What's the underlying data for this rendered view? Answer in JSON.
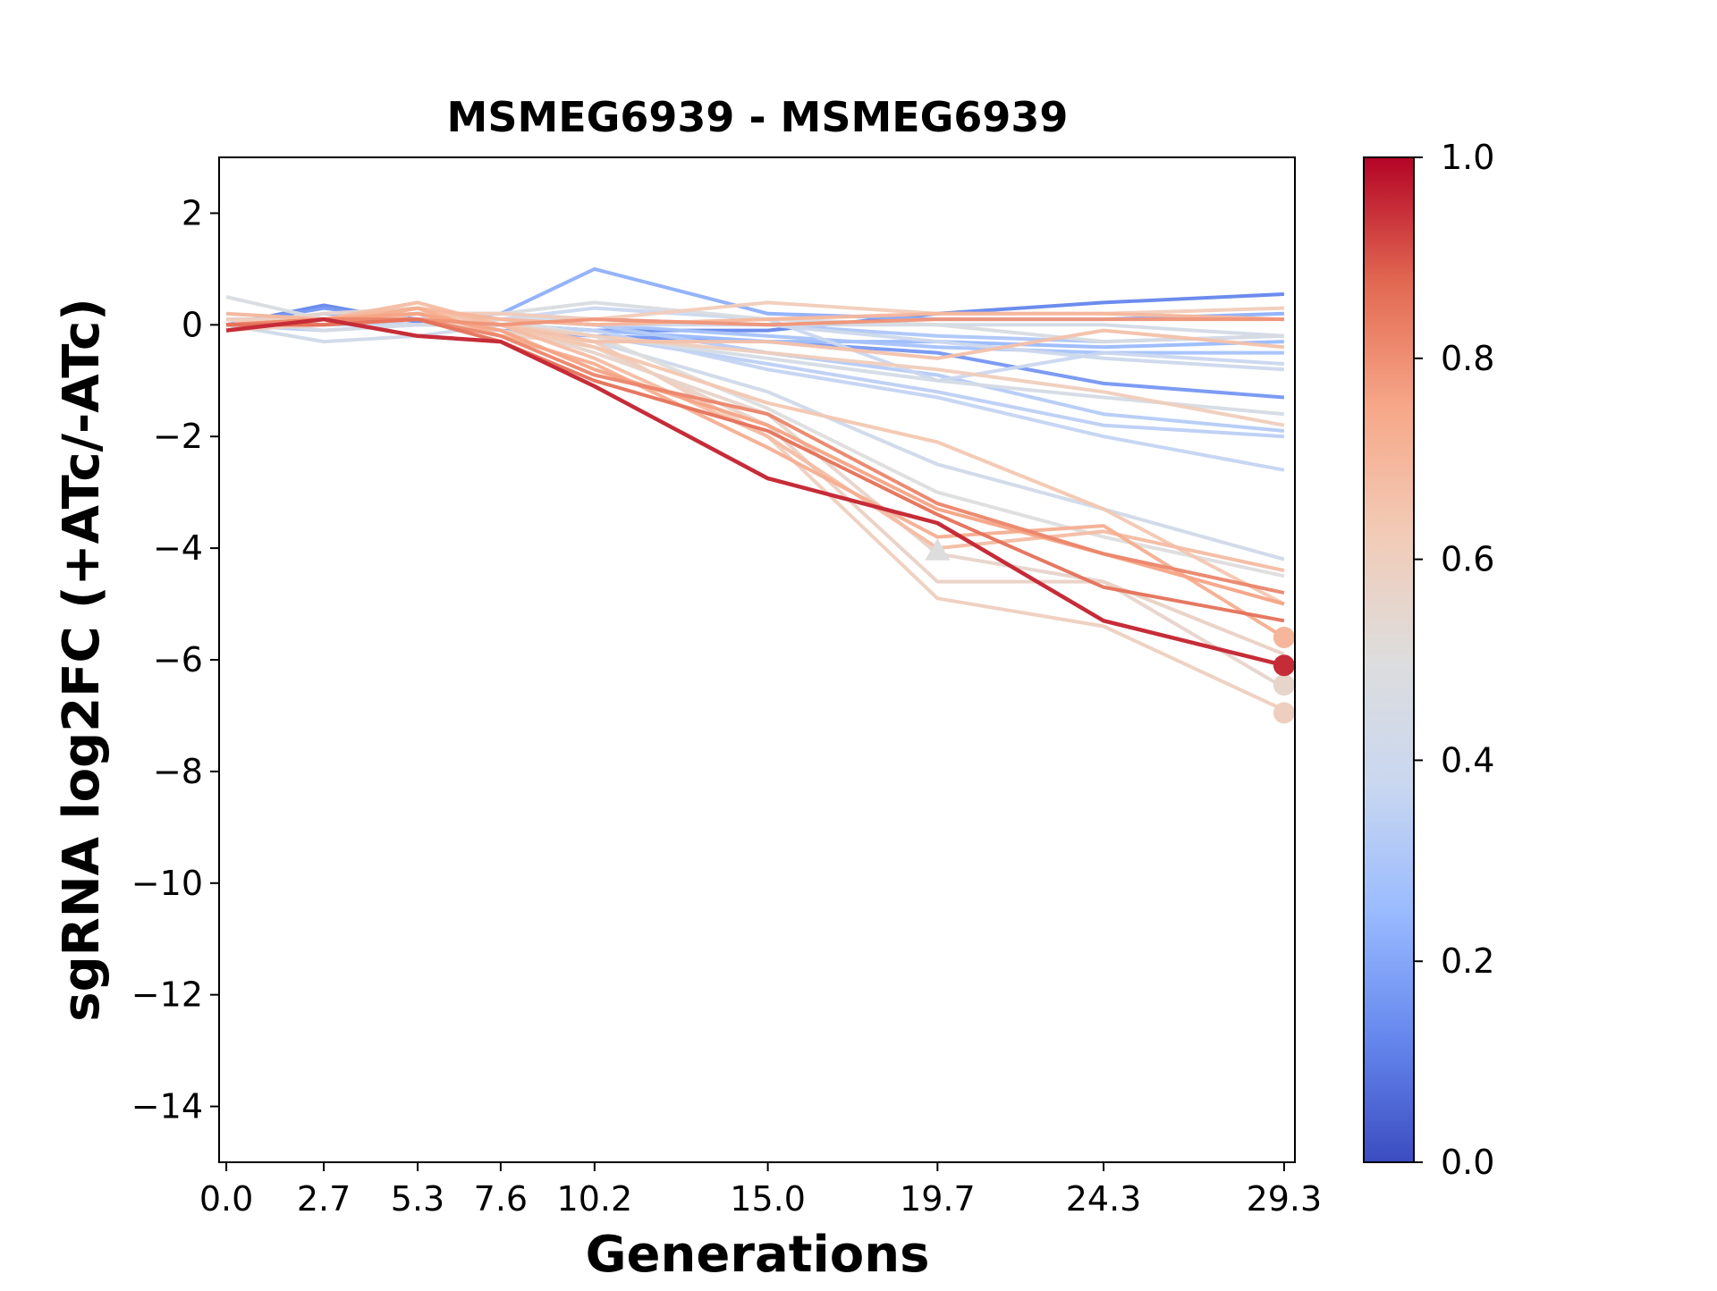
{
  "chart_data": {
    "type": "line",
    "title": "MSMEG6939 - MSMEG6939",
    "xlabel": "Generations",
    "ylabel": "sgRNA log2FC (+ATc/-ATc)",
    "x_ticks": [
      "0.0",
      "2.7",
      "5.3",
      "7.6",
      "10.2",
      "15.0",
      "19.7",
      "24.3",
      "29.3"
    ],
    "x": [
      0.0,
      2.7,
      5.3,
      7.6,
      10.2,
      15.0,
      19.7,
      24.3,
      29.3
    ],
    "xlim": [
      -0.2,
      29.6
    ],
    "ylim": [
      -15,
      3
    ],
    "y_ticks": [
      2,
      0,
      -2,
      -4,
      -6,
      -8,
      -10,
      -12,
      -14
    ],
    "y_tick_labels": [
      "2",
      "0",
      "−2",
      "−4",
      "−6",
      "−8",
      "−10",
      "−12",
      "−14"
    ],
    "colorbar": {
      "colormap": "coolwarm",
      "range": [
        0.0,
        1.0
      ],
      "ticks": [
        "0.0",
        "0.2",
        "0.4",
        "0.6",
        "0.8",
        "1.0"
      ],
      "stops": [
        "#3b4cc0",
        "#6688ee",
        "#9abbff",
        "#c9d7f0",
        "#dddddd",
        "#f2cbb7",
        "#f7a889",
        "#e26952",
        "#b40426"
      ]
    },
    "series": [
      {
        "c": 0.12,
        "values": [
          0.0,
          0.35,
          0.05,
          0.0,
          -0.1,
          -0.1,
          0.2,
          0.4,
          0.55
        ]
      },
      {
        "c": 0.16,
        "values": [
          0.0,
          0.3,
          0.1,
          -0.1,
          -0.2,
          -0.3,
          -0.5,
          -1.05,
          -1.3
        ]
      },
      {
        "c": 0.22,
        "values": [
          0.0,
          0.2,
          0.1,
          0.2,
          1.0,
          0.2,
          0.1,
          0.1,
          0.2
        ]
      },
      {
        "c": 0.25,
        "values": [
          0.1,
          0.1,
          0.0,
          0.0,
          -0.1,
          -0.3,
          -0.3,
          -0.4,
          -0.3
        ]
      },
      {
        "c": 0.28,
        "values": [
          0.0,
          0.0,
          0.1,
          0.1,
          0.0,
          -0.2,
          -0.4,
          -0.5,
          -0.5
        ]
      },
      {
        "c": 0.3,
        "values": [
          0.1,
          0.0,
          0.2,
          0.2,
          0.1,
          0.0,
          -0.2,
          -0.3,
          -0.2
        ]
      },
      {
        "c": 0.32,
        "values": [
          0.0,
          -0.1,
          0.0,
          0.1,
          0.0,
          -0.5,
          -0.9,
          -1.6,
          -1.9
        ]
      },
      {
        "c": 0.34,
        "values": [
          0.0,
          0.1,
          0.1,
          0.0,
          -0.2,
          -0.7,
          -1.2,
          -1.8,
          -2.0
        ]
      },
      {
        "c": 0.36,
        "values": [
          0.1,
          0.0,
          0.0,
          0.0,
          -0.1,
          -0.8,
          -1.3,
          -2.0,
          -2.6
        ]
      },
      {
        "c": 0.38,
        "values": [
          0.0,
          0.1,
          0.0,
          0.1,
          0.3,
          0.1,
          -1.0,
          -0.5,
          -0.7
        ]
      },
      {
        "c": 0.4,
        "values": [
          0.0,
          0.0,
          0.2,
          0.1,
          0.0,
          0.0,
          -0.3,
          -0.6,
          -0.8
        ]
      },
      {
        "c": 0.42,
        "values": [
          0.0,
          -0.3,
          -0.2,
          0.0,
          -0.3,
          -1.2,
          -2.5,
          -3.3,
          -4.2
        ]
      },
      {
        "c": 0.44,
        "values": [
          0.0,
          0.0,
          0.1,
          0.1,
          0.1,
          0.0,
          0.0,
          0.0,
          -0.2
        ]
      },
      {
        "c": 0.45,
        "values": [
          0.1,
          -0.1,
          0.0,
          0.0,
          -0.2,
          -0.6,
          -1.0,
          -1.3,
          -1.6
        ]
      },
      {
        "c": 0.47,
        "values": [
          0.5,
          0.1,
          0.2,
          0.2,
          0.4,
          0.1,
          0.0,
          -0.3,
          -0.2
        ]
      },
      {
        "c": 0.5,
        "values": [
          0.2,
          0.1,
          0.2,
          0.1,
          -0.2,
          -1.5,
          -3.0,
          -3.8,
          -4.5
        ]
      },
      {
        "c": 0.56,
        "values": [
          0.0,
          0.2,
          0.3,
          0.0,
          -0.5,
          -1.6,
          -4.1,
          -4.6,
          -6.5
        ]
      },
      {
        "c": 0.58,
        "values": [
          0.1,
          0.1,
          0.1,
          -0.1,
          -0.4,
          -1.8,
          -4.6,
          -4.6,
          -5.9
        ]
      },
      {
        "c": 0.6,
        "values": [
          -0.1,
          0.0,
          0.2,
          -0.2,
          -0.3,
          -2.0,
          -4.9,
          -5.4,
          -6.9
        ]
      },
      {
        "c": 0.61,
        "values": [
          0.0,
          0.1,
          0.2,
          0.0,
          -0.2,
          -0.5,
          -0.8,
          -1.2,
          -1.8
        ]
      },
      {
        "c": 0.62,
        "values": [
          0.1,
          0.0,
          0.2,
          0.2,
          0.1,
          0.4,
          0.2,
          0.2,
          0.3
        ]
      },
      {
        "c": 0.64,
        "values": [
          0.0,
          0.0,
          0.2,
          0.0,
          -0.4,
          -1.4,
          -2.1,
          -3.3,
          -5.0
        ]
      },
      {
        "c": 0.66,
        "values": [
          0.0,
          0.1,
          0.3,
          0.0,
          -0.3,
          -0.3,
          -0.6,
          -0.1,
          -0.4
        ]
      },
      {
        "c": 0.68,
        "values": [
          0.0,
          0.1,
          0.4,
          0.0,
          -0.6,
          -2.0,
          -4.0,
          -3.7,
          -4.4
        ]
      },
      {
        "c": 0.7,
        "values": [
          0.2,
          0.1,
          0.3,
          0.1,
          0.0,
          0.1,
          0.2,
          0.2,
          0.1
        ]
      },
      {
        "c": 0.73,
        "values": [
          0.0,
          0.0,
          0.3,
          -0.2,
          -0.7,
          -2.2,
          -3.8,
          -3.6,
          -5.6
        ]
      },
      {
        "c": 0.76,
        "values": [
          0.0,
          0.1,
          0.2,
          -0.1,
          -0.8,
          -1.8,
          -3.3,
          -4.1,
          -5.0
        ]
      },
      {
        "c": 0.79,
        "values": [
          0.0,
          0.0,
          0.1,
          0.0,
          0.1,
          0.0,
          0.1,
          0.1,
          0.1
        ]
      },
      {
        "c": 0.82,
        "values": [
          0.0,
          0.1,
          0.1,
          -0.2,
          -0.9,
          -1.6,
          -3.2,
          -4.1,
          -4.8
        ]
      },
      {
        "c": 0.86,
        "values": [
          0.0,
          0.0,
          0.1,
          -0.3,
          -1.0,
          -1.9,
          -3.4,
          -4.7,
          -5.3
        ]
      },
      {
        "c": 0.95,
        "values": [
          -0.1,
          0.1,
          -0.2,
          -0.3,
          -1.1,
          -2.75,
          -3.55,
          -5.3,
          -6.1
        ]
      }
    ],
    "markers": [
      {
        "shape": "triangle",
        "x": 19.7,
        "y": -4.05,
        "c": 0.5
      },
      {
        "shape": "circle",
        "x": 29.3,
        "y": -5.6,
        "c": 0.7
      },
      {
        "shape": "circle",
        "x": 29.3,
        "y": -6.45,
        "c": 0.56
      },
      {
        "shape": "circle",
        "x": 29.3,
        "y": -6.95,
        "c": 0.6
      },
      {
        "shape": "circle",
        "x": 29.3,
        "y": -6.1,
        "c": 0.95
      }
    ]
  }
}
